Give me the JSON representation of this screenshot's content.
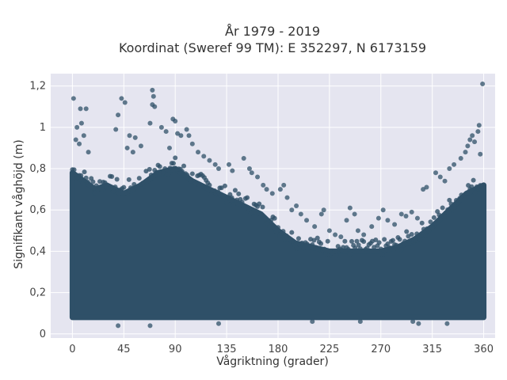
{
  "chart_data": {
    "type": "scatter",
    "title": "År 1979 - 2019",
    "subtitle": "Koordinat (Sweref 99 TM): E 352297, N 6173159",
    "xlabel": "Vågriktning (grader)",
    "ylabel": "Signifikant våghöjd (m)",
    "xlim": [
      -19,
      370
    ],
    "ylim": [
      -0.02,
      1.26
    ],
    "xticks": [
      0,
      45,
      90,
      135,
      180,
      225,
      270,
      315,
      360
    ],
    "xtick_labels": [
      "0",
      "45",
      "90",
      "135",
      "180",
      "225",
      "270",
      "315",
      "360"
    ],
    "yticks": [
      0,
      0.2,
      0.4,
      0.6,
      0.8,
      1,
      1.2
    ],
    "ytick_labels": [
      "0",
      "0,2",
      "0,4",
      "0,6",
      "0,8",
      "1",
      "1,2"
    ],
    "grid": true,
    "colors": {
      "marker": "#2f5068",
      "plot_bg": "#e5e5f0",
      "grid": "#ffffff"
    },
    "dense_band": {
      "lower_bound": 0.08,
      "upper_envelope": [
        [
          0,
          0.78
        ],
        [
          10,
          0.74
        ],
        [
          20,
          0.7
        ],
        [
          30,
          0.72
        ],
        [
          45,
          0.68
        ],
        [
          60,
          0.72
        ],
        [
          75,
          0.78
        ],
        [
          90,
          0.8
        ],
        [
          105,
          0.74
        ],
        [
          120,
          0.7
        ],
        [
          135,
          0.66
        ],
        [
          150,
          0.62
        ],
        [
          165,
          0.58
        ],
        [
          180,
          0.5
        ],
        [
          195,
          0.44
        ],
        [
          210,
          0.42
        ],
        [
          225,
          0.4
        ],
        [
          240,
          0.4
        ],
        [
          255,
          0.4
        ],
        [
          270,
          0.4
        ],
        [
          285,
          0.42
        ],
        [
          300,
          0.46
        ],
        [
          315,
          0.52
        ],
        [
          330,
          0.6
        ],
        [
          345,
          0.68
        ],
        [
          360,
          0.72
        ]
      ]
    },
    "points": [
      [
        1,
        1.14
      ],
      [
        7,
        1.09
      ],
      [
        12,
        1.09
      ],
      [
        4,
        1.0
      ],
      [
        8,
        1.02
      ],
      [
        3,
        0.94
      ],
      [
        6,
        0.92
      ],
      [
        14,
        0.88
      ],
      [
        10,
        0.96
      ],
      [
        43,
        1.14
      ],
      [
        46,
        1.12
      ],
      [
        40,
        1.06
      ],
      [
        38,
        0.99
      ],
      [
        50,
        0.96
      ],
      [
        48,
        0.9
      ],
      [
        53,
        0.88
      ],
      [
        55,
        0.95
      ],
      [
        60,
        0.91
      ],
      [
        70,
        1.18
      ],
      [
        71,
        1.15
      ],
      [
        70,
        1.11
      ],
      [
        72,
        1.1
      ],
      [
        68,
        1.02
      ],
      [
        78,
        1.0
      ],
      [
        82,
        0.98
      ],
      [
        88,
        1.04
      ],
      [
        90,
        1.03
      ],
      [
        92,
        0.97
      ],
      [
        95,
        0.96
      ],
      [
        100,
        0.99
      ],
      [
        102,
        0.96
      ],
      [
        105,
        0.92
      ],
      [
        85,
        0.9
      ],
      [
        110,
        0.88
      ],
      [
        115,
        0.86
      ],
      [
        120,
        0.84
      ],
      [
        125,
        0.82
      ],
      [
        128,
        0.8
      ],
      [
        137,
        0.82
      ],
      [
        140,
        0.79
      ],
      [
        150,
        0.85
      ],
      [
        155,
        0.8
      ],
      [
        157,
        0.78
      ],
      [
        162,
        0.76
      ],
      [
        167,
        0.72
      ],
      [
        170,
        0.7
      ],
      [
        175,
        0.68
      ],
      [
        182,
        0.7
      ],
      [
        185,
        0.72
      ],
      [
        188,
        0.66
      ],
      [
        192,
        0.6
      ],
      [
        196,
        0.62
      ],
      [
        200,
        0.58
      ],
      [
        205,
        0.55
      ],
      [
        212,
        0.52
      ],
      [
        218,
        0.58
      ],
      [
        220,
        0.6
      ],
      [
        225,
        0.5
      ],
      [
        230,
        0.48
      ],
      [
        235,
        0.47
      ],
      [
        240,
        0.55
      ],
      [
        243,
        0.61
      ],
      [
        247,
        0.58
      ],
      [
        250,
        0.5
      ],
      [
        255,
        0.48
      ],
      [
        262,
        0.52
      ],
      [
        268,
        0.56
      ],
      [
        272,
        0.6
      ],
      [
        276,
        0.55
      ],
      [
        282,
        0.53
      ],
      [
        288,
        0.58
      ],
      [
        292,
        0.57
      ],
      [
        297,
        0.59
      ],
      [
        302,
        0.56
      ],
      [
        307,
        0.7
      ],
      [
        310,
        0.71
      ],
      [
        318,
        0.78
      ],
      [
        322,
        0.76
      ],
      [
        326,
        0.74
      ],
      [
        330,
        0.8
      ],
      [
        334,
        0.82
      ],
      [
        340,
        0.85
      ],
      [
        344,
        0.88
      ],
      [
        346,
        0.91
      ],
      [
        348,
        0.94
      ],
      [
        350,
        0.96
      ],
      [
        352,
        0.93
      ],
      [
        355,
        0.98
      ],
      [
        356,
        1.01
      ],
      [
        357,
        0.87
      ],
      [
        359,
        1.21
      ],
      [
        40,
        0.04
      ],
      [
        68,
        0.04
      ],
      [
        128,
        0.05
      ],
      [
        298,
        0.06
      ],
      [
        328,
        0.05
      ],
      [
        303,
        0.05
      ],
      [
        210,
        0.06
      ],
      [
        252,
        0.06
      ]
    ]
  }
}
